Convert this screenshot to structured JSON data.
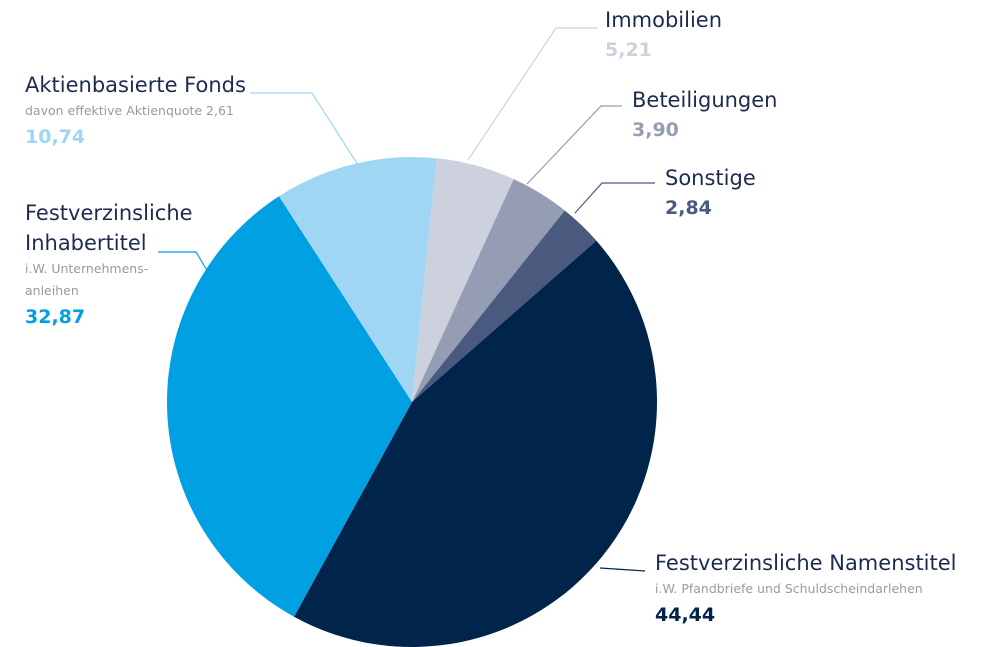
{
  "chart_data": {
    "type": "pie",
    "categories": [
      "Festverzinsliche Namenstitel",
      "Festverzinsliche Inhabertitel",
      "Aktienbasierte Fonds",
      "Immobilien",
      "Beteiligungen",
      "Sonstige"
    ],
    "annotations": [
      "i.W. Pfandbriefe und Schuldscheindarlehen",
      "i.W. Unternehmens-anleihen",
      "davon effektive Aktienquote 2,61",
      null,
      null,
      null
    ],
    "values": [
      44.44,
      32.87,
      10.74,
      5.21,
      3.9,
      2.84
    ],
    "value_labels": [
      "44,44",
      "32,87",
      "10,74",
      "5,21",
      "3,90",
      "2,84"
    ],
    "colors": [
      "#00244a",
      "#00a0e3",
      "#9ed6f4",
      "#cdd1de",
      "#959db5",
      "#4a5a7e"
    ]
  }
}
